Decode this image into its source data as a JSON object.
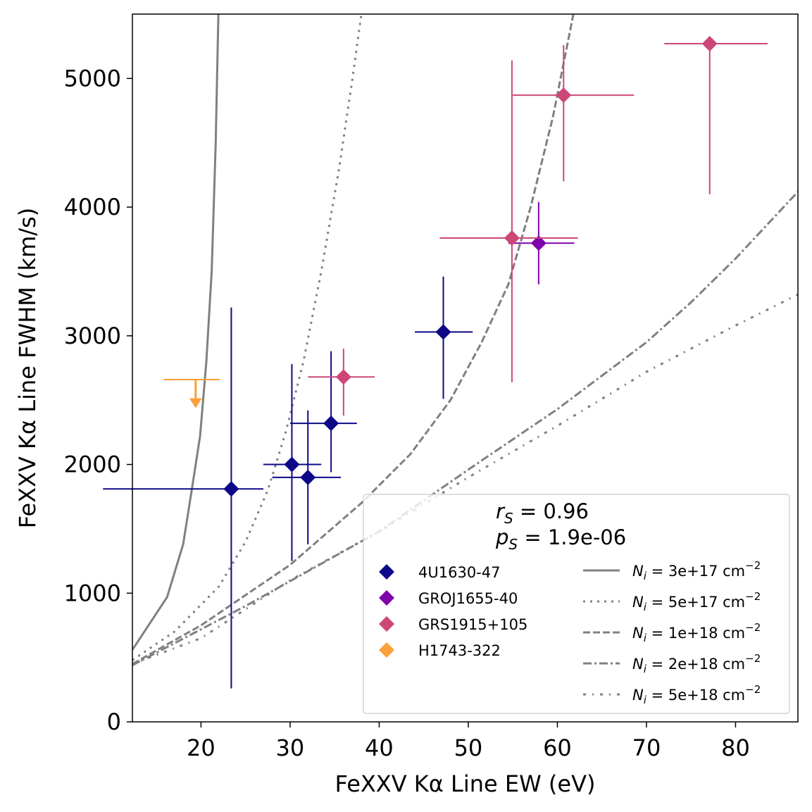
{
  "chart_data": {
    "type": "scatter",
    "xlabel": "FeXXV Kα Line EW (eV)",
    "ylabel": "FeXXV Kα Line FWHM (km/s)",
    "xlim": [
      12.3,
      87
    ],
    "ylim": [
      0,
      5500
    ],
    "xticks": [
      20,
      30,
      40,
      50,
      60,
      70,
      80
    ],
    "yticks": [
      0,
      1000,
      2000,
      3000,
      4000,
      5000
    ],
    "stats": {
      "rs": "r_S = 0.96",
      "ps": "p_S = 1.9e-06"
    },
    "series": [
      {
        "name": "4U1630-47",
        "color": "#0d0887",
        "points": [
          {
            "x": 23.4,
            "y": 1810,
            "xerr": [
              9.0,
              27.0
            ],
            "yerr": [
              260,
              3220
            ]
          },
          {
            "x": 30.2,
            "y": 2000,
            "xerr": [
              27.0,
              33.5
            ],
            "yerr": [
              1250,
              2780
            ]
          },
          {
            "x": 32.0,
            "y": 1900,
            "xerr": [
              28.0,
              35.7
            ],
            "yerr": [
              1380,
              2420
            ]
          },
          {
            "x": 34.6,
            "y": 2320,
            "xerr": [
              30.0,
              37.5
            ],
            "yerr": [
              1940,
              2880
            ]
          },
          {
            "x": 47.2,
            "y": 3030,
            "xerr": [
              44.0,
              50.5
            ],
            "yerr": [
              2510,
              3460
            ]
          }
        ]
      },
      {
        "name": "GROJ1655-40",
        "color": "#7e03a8",
        "points": [
          {
            "x": 57.9,
            "y": 3720,
            "xerr": [
              54.5,
              61.9
            ],
            "yerr": [
              3400,
              4040
            ]
          }
        ]
      },
      {
        "name": "GRS1915+105",
        "color": "#cc4778",
        "points": [
          {
            "x": 36.0,
            "y": 2680,
            "xerr": [
              32.0,
              39.5
            ],
            "yerr": [
              2380,
              2900
            ]
          },
          {
            "x": 54.9,
            "y": 3760,
            "xerr": [
              46.8,
              62.3
            ],
            "yerr": [
              2640,
              5140
            ]
          },
          {
            "x": 60.7,
            "y": 4870,
            "xerr": [
              55.0,
              68.6
            ],
            "yerr": [
              4200,
              5260
            ]
          },
          {
            "x": 77.1,
            "y": 5270,
            "xerr": [
              72.0,
              83.6
            ],
            "yerr": [
              4100,
              5270
            ]
          }
        ]
      },
      {
        "name": "H1743-322",
        "color": "#fb9f3a",
        "upper_limit": true,
        "points": [
          {
            "x": 19.4,
            "y": 2660,
            "xerr": [
              15.8,
              22.1
            ],
            "arrow_to": 2460
          }
        ]
      }
    ],
    "model_curves": [
      {
        "label": "N_i = 3e+17 cm^-2",
        "ni_text": "3e+17",
        "dash": "",
        "points": [
          [
            12.3,
            560
          ],
          [
            16.2,
            970
          ],
          [
            18.0,
            1380
          ],
          [
            19.0,
            1820
          ],
          [
            19.9,
            2220
          ],
          [
            20.6,
            2800
          ],
          [
            21.2,
            3500
          ],
          [
            21.65,
            4500
          ],
          [
            21.95,
            5500
          ]
        ]
      },
      {
        "label": "N_i = 5e+17 cm^-2",
        "ni_text": "5e+17",
        "dash": "3 7",
        "points": [
          [
            12.3,
            480
          ],
          [
            17.0,
            700
          ],
          [
            22.0,
            1050
          ],
          [
            25.0,
            1400
          ],
          [
            27.5,
            1800
          ],
          [
            29.5,
            2250
          ],
          [
            31.5,
            2800
          ],
          [
            33.5,
            3500
          ],
          [
            35.5,
            4300
          ],
          [
            37.0,
            5000
          ],
          [
            38.0,
            5500
          ]
        ]
      },
      {
        "label": "N_i = 1e+18 cm^-2",
        "ni_text": "1e+18",
        "dash": "10 4",
        "points": [
          [
            12.3,
            450
          ],
          [
            20.0,
            750
          ],
          [
            30.0,
            1220
          ],
          [
            38.0,
            1700
          ],
          [
            43.5,
            2080
          ],
          [
            48.0,
            2500
          ],
          [
            51.5,
            2950
          ],
          [
            54.5,
            3400
          ],
          [
            57.0,
            4000
          ],
          [
            59.5,
            4700
          ],
          [
            61.8,
            5500
          ]
        ]
      },
      {
        "label": "N_i = 2e+18 cm^-2",
        "ni_text": "2e+18",
        "dash": "12 4 3 4",
        "points": [
          [
            12.3,
            440
          ],
          [
            25.0,
            900
          ],
          [
            40.0,
            1480
          ],
          [
            50.0,
            1960
          ],
          [
            60.0,
            2430
          ],
          [
            70.0,
            2950
          ],
          [
            75.0,
            3260
          ],
          [
            80.0,
            3600
          ],
          [
            87.0,
            4120
          ]
        ]
      },
      {
        "label": "N_i = 5e+18 cm^-2",
        "ni_text": "5e+18",
        "dash": "4 9 2 9",
        "points": [
          [
            12.3,
            450
          ],
          [
            20.0,
            650
          ],
          [
            30.0,
            1100
          ],
          [
            40.0,
            1480
          ],
          [
            50.0,
            1900
          ],
          [
            60.0,
            2300
          ],
          [
            70.0,
            2720
          ],
          [
            80.0,
            3080
          ],
          [
            87.0,
            3320
          ]
        ]
      }
    ]
  }
}
